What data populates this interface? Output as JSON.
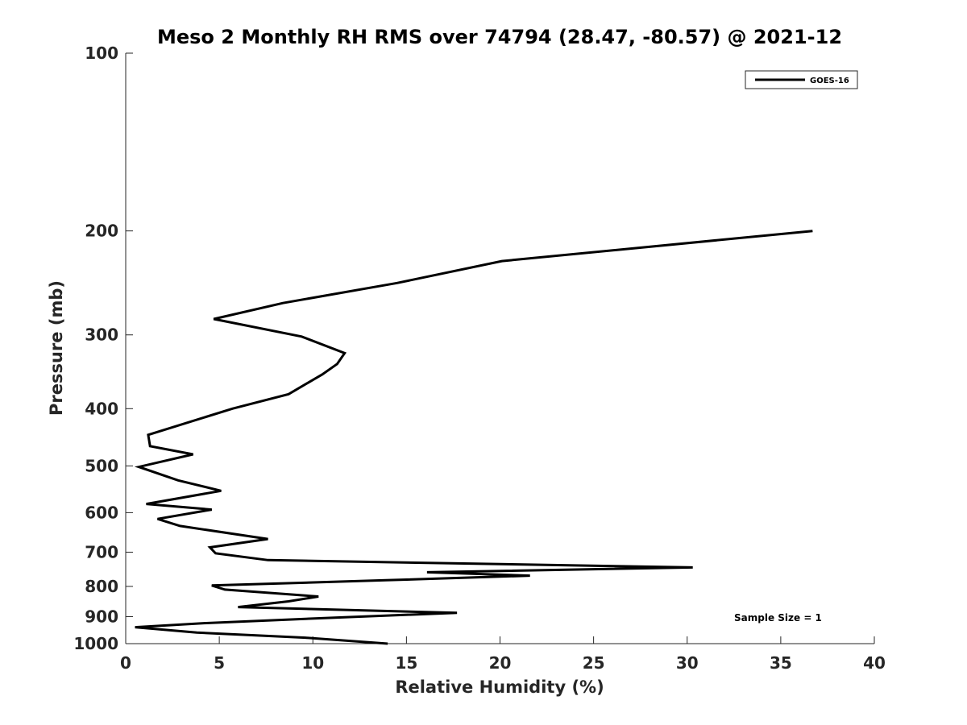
{
  "chart_data": {
    "type": "line",
    "title": "Meso 2 Monthly RH RMS over 74794 (28.47, -80.57) @ 2021-12",
    "xlabel": "Relative Humidity (%)",
    "ylabel": "Pressure (mb)",
    "xlim": [
      0,
      40
    ],
    "ylim": [
      100,
      1000
    ],
    "y_scale": "log",
    "y_reversed": true,
    "xticks": [
      "0",
      "5",
      "10",
      "15",
      "20",
      "25",
      "30",
      "35",
      "40"
    ],
    "yticks": [
      "100",
      "200",
      "300",
      "400",
      "500",
      "600",
      "700",
      "800",
      "900",
      "1000"
    ],
    "legend_position": "top-right",
    "annotation": "Sample Size = 1",
    "series": [
      {
        "name": "GOES-16",
        "color": "#000000",
        "points": [
          [
            36.7,
            200
          ],
          [
            20.1,
            225
          ],
          [
            14.5,
            245
          ],
          [
            8.4,
            265
          ],
          [
            4.7,
            282
          ],
          [
            9.4,
            302
          ],
          [
            11.7,
            322
          ],
          [
            11.3,
            336
          ],
          [
            10.5,
            350
          ],
          [
            8.7,
            378
          ],
          [
            5.7,
            400
          ],
          [
            1.2,
            443
          ],
          [
            1.3,
            463
          ],
          [
            3.6,
            478
          ],
          [
            0.7,
            502
          ],
          [
            2.8,
            529
          ],
          [
            5.1,
            551
          ],
          [
            1.1,
            580
          ],
          [
            4.6,
            593
          ],
          [
            1.7,
            615
          ],
          [
            2.9,
            632
          ],
          [
            7.6,
            665
          ],
          [
            4.5,
            687
          ],
          [
            4.8,
            703
          ],
          [
            7.6,
            722
          ],
          [
            30.3,
            743
          ],
          [
            16.1,
            757
          ],
          [
            21.6,
            767
          ],
          [
            13.9,
            781
          ],
          [
            4.6,
            797
          ],
          [
            5.3,
            810
          ],
          [
            10.3,
            832
          ],
          [
            8.7,
            848
          ],
          [
            6.0,
            867
          ],
          [
            17.7,
            887
          ],
          [
            11.7,
            902
          ],
          [
            4.3,
            923
          ],
          [
            0.5,
            938
          ],
          [
            3.8,
            958
          ],
          [
            9.6,
            977
          ],
          [
            14.0,
            1000
          ]
        ]
      }
    ]
  }
}
